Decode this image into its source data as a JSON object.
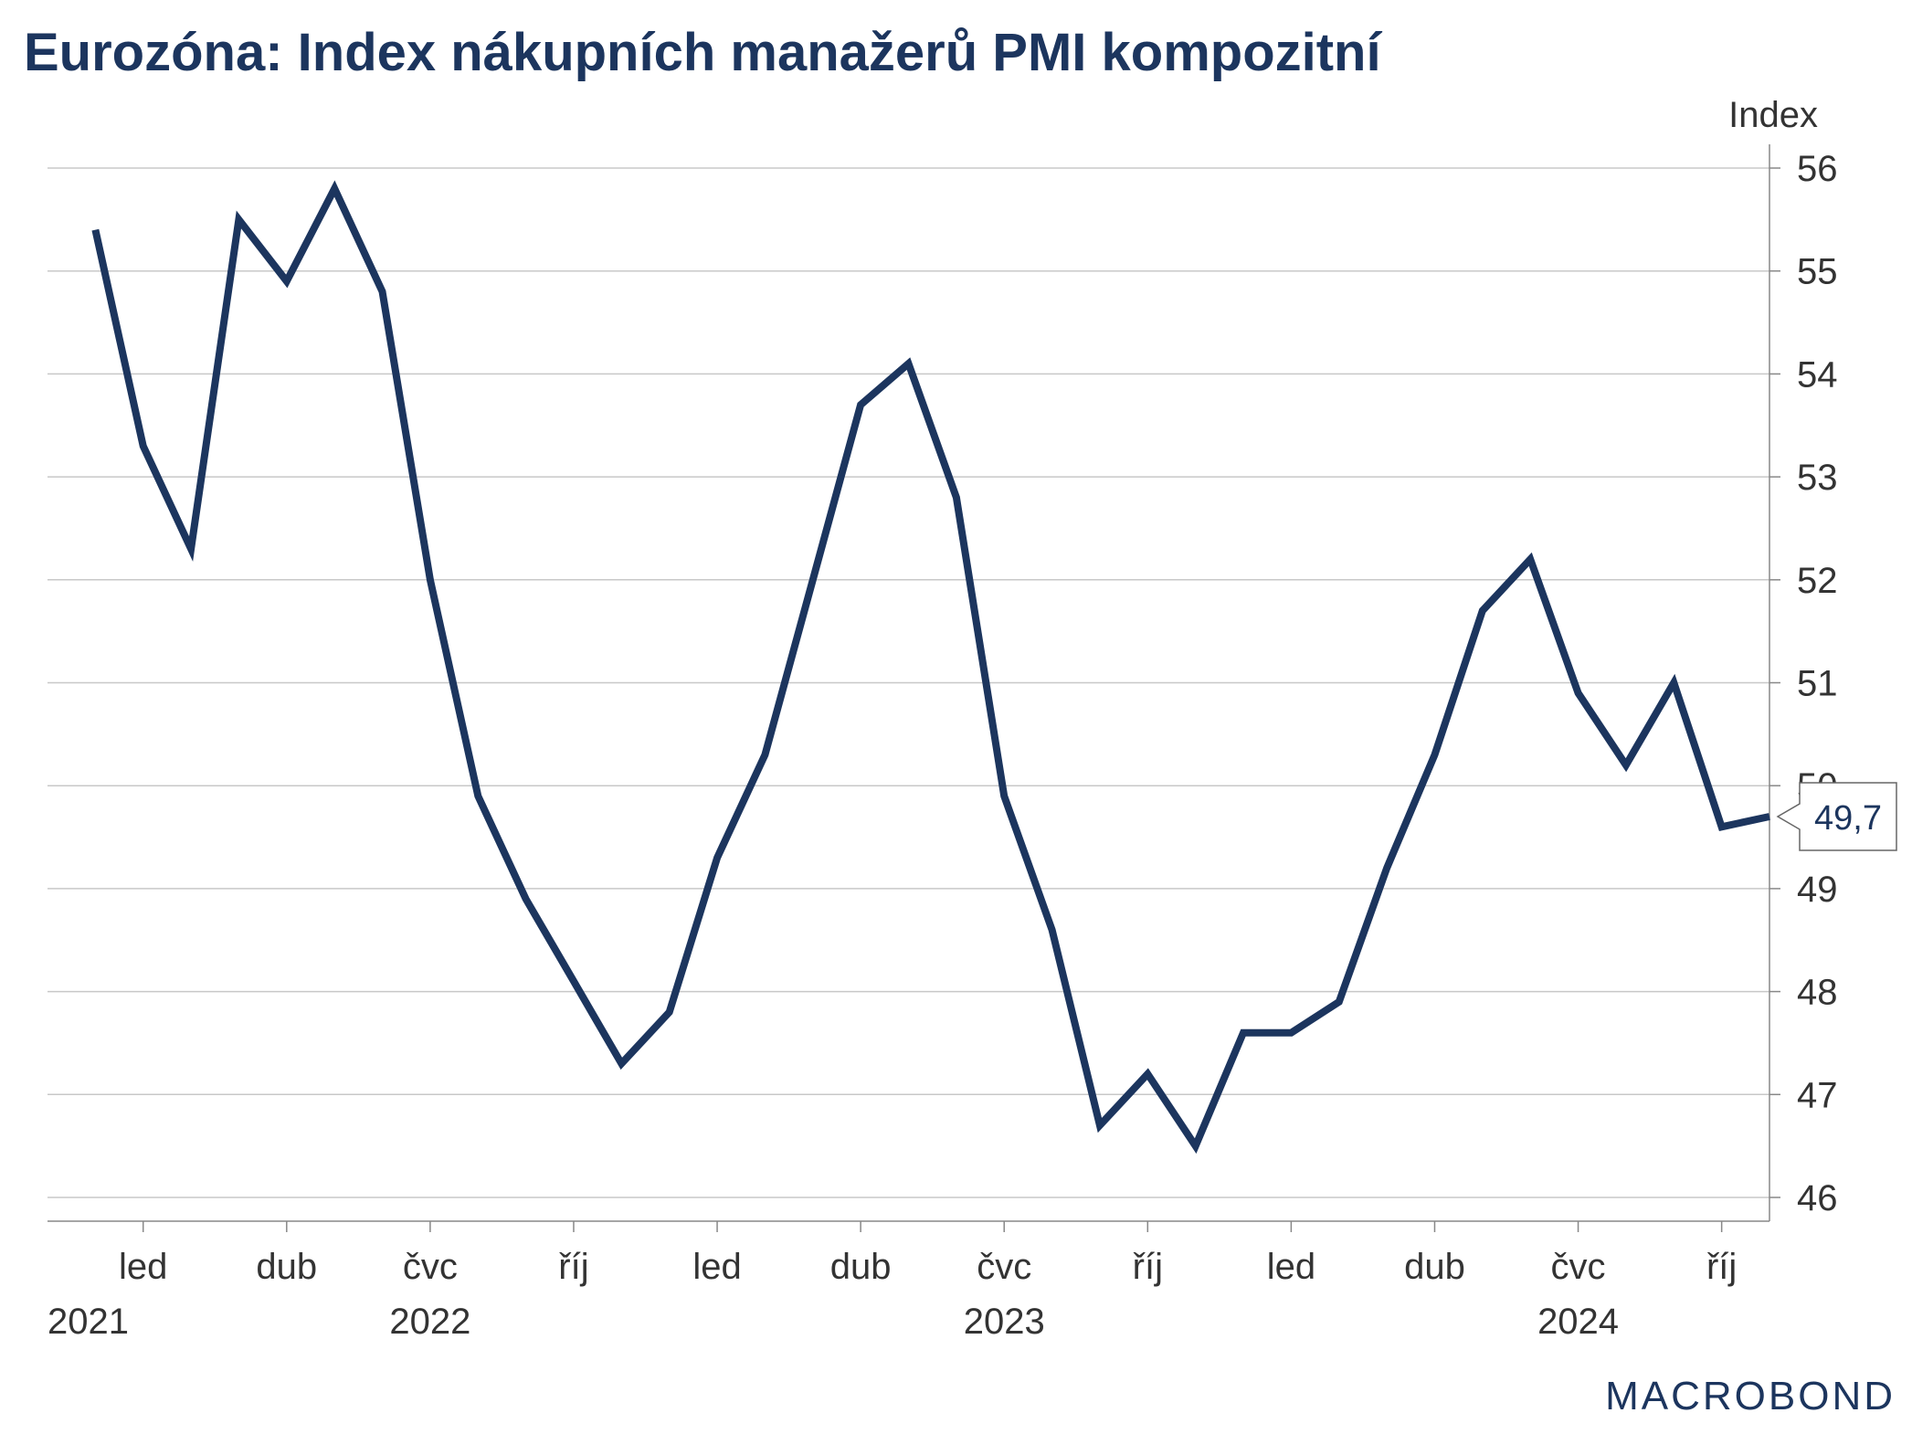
{
  "title": "Eurozóna: Index nákupních manažerů PMI kompozitní",
  "brand": "MACROBOND",
  "colors": {
    "line": "#1c355e",
    "grid": "#c8c8c8",
    "text": "#333333",
    "title": "#1c355e"
  },
  "chart_data": {
    "type": "line",
    "title": "Eurozóna: Index nákupních manažerů PMI kompozitní",
    "ylabel": "Index",
    "ylim": [
      46,
      56
    ],
    "yticks": [
      46,
      47,
      48,
      49,
      50,
      51,
      52,
      53,
      54,
      55,
      56
    ],
    "grid": true,
    "y_axis_position": "right",
    "x_range": [
      "2021-11",
      "2024-11"
    ],
    "month_ticks": [
      {
        "date": "2022-01",
        "label": "led",
        "year": "2021"
      },
      {
        "date": "2022-04",
        "label": "dub",
        "year": ""
      },
      {
        "date": "2022-07",
        "label": "čvc",
        "year": "2022"
      },
      {
        "date": "2022-10",
        "label": "říj",
        "year": ""
      },
      {
        "date": "2023-01",
        "label": "led",
        "year": ""
      },
      {
        "date": "2023-04",
        "label": "dub",
        "year": ""
      },
      {
        "date": "2023-07",
        "label": "čvc",
        "year": "2023"
      },
      {
        "date": "2023-10",
        "label": "říj",
        "year": ""
      },
      {
        "date": "2024-01",
        "label": "led",
        "year": ""
      },
      {
        "date": "2024-04",
        "label": "dub",
        "year": ""
      },
      {
        "date": "2024-07",
        "label": "čvc",
        "year": "2024"
      },
      {
        "date": "2024-10",
        "label": "říj",
        "year": ""
      }
    ],
    "series": [
      {
        "values": [
          {
            "x": "2021-12",
            "y": 55.4
          },
          {
            "x": "2022-01",
            "y": 53.3
          },
          {
            "x": "2022-02",
            "y": 52.3
          },
          {
            "x": "2022-03",
            "y": 55.5
          },
          {
            "x": "2022-04",
            "y": 54.9
          },
          {
            "x": "2022-05",
            "y": 55.8
          },
          {
            "x": "2022-06",
            "y": 54.8
          },
          {
            "x": "2022-07",
            "y": 52.0
          },
          {
            "x": "2022-08",
            "y": 49.9
          },
          {
            "x": "2022-09",
            "y": 48.9
          },
          {
            "x": "2022-10",
            "y": 48.1
          },
          {
            "x": "2022-11",
            "y": 47.3
          },
          {
            "x": "2022-12",
            "y": 47.8
          },
          {
            "x": "2023-01",
            "y": 49.3
          },
          {
            "x": "2023-02",
            "y": 50.3
          },
          {
            "x": "2023-03",
            "y": 52.0
          },
          {
            "x": "2023-04",
            "y": 53.7
          },
          {
            "x": "2023-05",
            "y": 54.1
          },
          {
            "x": "2023-06",
            "y": 52.8
          },
          {
            "x": "2023-07",
            "y": 49.9
          },
          {
            "x": "2023-08",
            "y": 48.6
          },
          {
            "x": "2023-09",
            "y": 46.7
          },
          {
            "x": "2023-10",
            "y": 47.2
          },
          {
            "x": "2023-11",
            "y": 46.5
          },
          {
            "x": "2023-12",
            "y": 47.6
          },
          {
            "x": "2024-01",
            "y": 47.6
          },
          {
            "x": "2024-02",
            "y": 47.9
          },
          {
            "x": "2024-03",
            "y": 49.2
          },
          {
            "x": "2024-04",
            "y": 50.3
          },
          {
            "x": "2024-05",
            "y": 51.7
          },
          {
            "x": "2024-06",
            "y": 52.2
          },
          {
            "x": "2024-07",
            "y": 50.9
          },
          {
            "x": "2024-08",
            "y": 50.2
          },
          {
            "x": "2024-09",
            "y": 51.0
          },
          {
            "x": "2024-10",
            "y": 49.6
          },
          {
            "x": "2024-11",
            "y": 49.7
          }
        ]
      }
    ],
    "annotations": [
      {
        "text": "49,7",
        "x": "2024-11",
        "y": 49.7
      }
    ]
  }
}
